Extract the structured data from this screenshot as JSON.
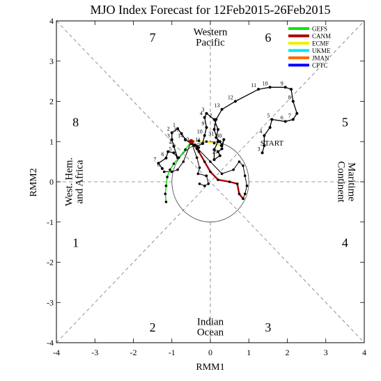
{
  "chart_data": {
    "type": "scatter",
    "title": "MJO Index Forecast for 12Feb2015-26Feb2015",
    "xlabel": "RMM1",
    "ylabel": "RMM2",
    "xlim": [
      -4,
      4
    ],
    "ylim": [
      -4,
      4
    ],
    "ticks": [
      "-4",
      "-3",
      "-2",
      "-1",
      "0",
      "1",
      "2",
      "3",
      "4"
    ],
    "grid": false,
    "legend_position": "top-right",
    "phases": [
      {
        "label": "1",
        "x": -3.5,
        "y": -1.5
      },
      {
        "label": "2",
        "x": -1.5,
        "y": -3.6
      },
      {
        "label": "3",
        "x": 1.5,
        "y": -3.6
      },
      {
        "label": "4",
        "x": 3.5,
        "y": -1.5
      },
      {
        "label": "5",
        "x": 3.5,
        "y": 1.5
      },
      {
        "label": "6",
        "x": 1.5,
        "y": 3.6
      },
      {
        "label": "7",
        "x": -1.5,
        "y": 3.6
      },
      {
        "label": "8",
        "x": -3.5,
        "y": 1.5
      }
    ],
    "regions": [
      {
        "name": "western-pacific",
        "lines": [
          "Western",
          "Pacific"
        ],
        "x": 0,
        "y": 3.6,
        "rotate": 0
      },
      {
        "name": "indian-ocean",
        "lines": [
          "Indian",
          "Ocean"
        ],
        "x": 0,
        "y": -3.6,
        "rotate": 0
      },
      {
        "name": "west-hem-africa",
        "lines": [
          "West. Hem.",
          "and Africa"
        ],
        "x": -3.55,
        "y": 0,
        "rotate": -90
      },
      {
        "name": "maritime-continent",
        "lines": [
          "Maritime",
          "Continent"
        ],
        "x": 3.55,
        "y": 0,
        "rotate": 90
      }
    ],
    "start_label": {
      "text": "START",
      "x": 1.3,
      "y": 0.9
    },
    "observed": {
      "name": "observed",
      "color": "#000000",
      "points": [
        {
          "x": -1.25,
          "y": 0.33,
          "label": "8"
        },
        {
          "x": -1.35,
          "y": 0.46,
          "label": "7"
        },
        {
          "x": -1.15,
          "y": 0.59,
          "label": "6"
        },
        {
          "x": -1.1,
          "y": 0.75,
          "label": ""
        },
        {
          "x": -0.95,
          "y": 0.72,
          "label": "5"
        },
        {
          "x": -0.85,
          "y": 0.6,
          "label": ""
        },
        {
          "x": -0.95,
          "y": 0.88,
          "label": "4"
        },
        {
          "x": -1.0,
          "y": 1.05,
          "label": "3"
        },
        {
          "x": -1.0,
          "y": 1.22,
          "label": "2"
        },
        {
          "x": -0.85,
          "y": 1.32,
          "label": "1"
        },
        {
          "x": -0.75,
          "y": 1.2,
          "label": "15"
        },
        {
          "x": -0.65,
          "y": 1.05,
          "label": "14"
        },
        {
          "x": -0.5,
          "y": 0.95,
          "label": "13"
        },
        {
          "x": -0.35,
          "y": 0.88,
          "label": "12"
        },
        {
          "x": -0.2,
          "y": 0.95,
          "label": "11"
        },
        {
          "x": -0.15,
          "y": 1.15,
          "label": "10"
        },
        {
          "x": -0.1,
          "y": 1.35,
          "label": "9"
        },
        {
          "x": -0.15,
          "y": 1.6,
          "label": "4"
        },
        {
          "x": -0.1,
          "y": 1.7,
          "label": "3"
        },
        {
          "x": 0.1,
          "y": 1.55,
          "label": "2"
        },
        {
          "x": 0.2,
          "y": 1.3,
          "label": "1"
        },
        {
          "x": 0.15,
          "y": 1.1,
          "label": "31"
        },
        {
          "x": 0.25,
          "y": 1.0,
          "label": ""
        },
        {
          "x": 0.3,
          "y": 0.9,
          "label": ""
        },
        {
          "x": 0.35,
          "y": 1.05,
          "label": "30"
        },
        {
          "x": 0.3,
          "y": 0.82,
          "label": ""
        },
        {
          "x": 0.2,
          "y": 0.75,
          "label": ""
        },
        {
          "x": 0.25,
          "y": 0.65,
          "label": "29"
        },
        {
          "x": 0.1,
          "y": 0.55,
          "label": ""
        },
        {
          "x": 0.1,
          "y": 0.8,
          "label": ""
        },
        {
          "x": 0.2,
          "y": 1.0,
          "label": ""
        },
        {
          "x": 0.1,
          "y": 1.3,
          "label": ""
        },
        {
          "x": 0.15,
          "y": 1.55,
          "label": ""
        },
        {
          "x": 0.3,
          "y": 1.8,
          "label": "13"
        },
        {
          "x": 0.65,
          "y": 2.0,
          "label": "12"
        },
        {
          "x": 1.25,
          "y": 2.3,
          "label": "11"
        },
        {
          "x": 1.55,
          "y": 2.35,
          "label": "10"
        },
        {
          "x": 1.95,
          "y": 2.35,
          "label": "9"
        },
        {
          "x": 2.1,
          "y": 2.3,
          "label": ""
        },
        {
          "x": 2.15,
          "y": 2.0,
          "label": "8"
        },
        {
          "x": 2.25,
          "y": 1.7,
          "label": ""
        },
        {
          "x": 2.15,
          "y": 1.55,
          "label": "7"
        },
        {
          "x": 1.95,
          "y": 1.5,
          "label": "6"
        },
        {
          "x": 1.6,
          "y": 1.55,
          "label": "5"
        },
        {
          "x": 1.55,
          "y": 1.35,
          "label": ""
        },
        {
          "x": 1.4,
          "y": 1.15,
          "label": "4"
        },
        {
          "x": 1.4,
          "y": 0.9,
          "label": ""
        },
        {
          "x": 1.35,
          "y": 0.72,
          "label": "3"
        }
      ]
    },
    "series": [
      {
        "name": "GEFS",
        "color": "#00ee00",
        "points": [
          {
            "x": -0.5,
            "y": 1.0
          },
          {
            "x": -0.65,
            "y": 0.8
          },
          {
            "x": -0.82,
            "y": 0.6
          },
          {
            "x": -0.95,
            "y": 0.45
          },
          {
            "x": -1.05,
            "y": 0.3
          },
          {
            "x": -1.12,
            "y": 0.12
          },
          {
            "x": -1.15,
            "y": -0.1
          },
          {
            "x": -1.17,
            "y": -0.3
          },
          {
            "x": -1.15,
            "y": -0.5
          }
        ]
      },
      {
        "name": "CANM",
        "color": "#aa0000",
        "points": [
          {
            "x": -0.5,
            "y": 1.0
          },
          {
            "x": -0.3,
            "y": 0.75
          },
          {
            "x": -0.15,
            "y": 0.5
          },
          {
            "x": 0.0,
            "y": 0.25
          },
          {
            "x": 0.2,
            "y": 0.05
          },
          {
            "x": 0.5,
            "y": 0.0
          },
          {
            "x": 0.7,
            "y": -0.05
          },
          {
            "x": 0.75,
            "y": -0.3
          },
          {
            "x": 0.85,
            "y": -0.42
          }
        ]
      },
      {
        "name": "ECMF",
        "color": "#f0f000",
        "points": [
          {
            "x": -0.5,
            "y": 1.0
          },
          {
            "x": -0.3,
            "y": 1.02
          },
          {
            "x": -0.1,
            "y": 1.0
          },
          {
            "x": 0.1,
            "y": 0.96
          },
          {
            "x": 0.28,
            "y": 0.9
          }
        ]
      },
      {
        "name": "UKME",
        "color": "#00e5ee",
        "points": [
          {
            "x": -0.5,
            "y": 1.0
          },
          {
            "x": -0.4,
            "y": 0.92
          },
          {
            "x": -0.3,
            "y": 0.85
          }
        ]
      },
      {
        "name": "JMAN",
        "color": "#ff6a00",
        "points": [
          {
            "x": -0.5,
            "y": 1.0
          },
          {
            "x": -0.42,
            "y": 0.9
          },
          {
            "x": -0.35,
            "y": 0.82
          }
        ]
      },
      {
        "name": "CPTC",
        "color": "#0000ff",
        "points": []
      }
    ],
    "ensemble_paths": [
      {
        "color": "#000000",
        "points": [
          {
            "x": -0.5,
            "y": 1.0
          },
          {
            "x": -0.7,
            "y": 0.5
          },
          {
            "x": -0.85,
            "y": 0.3
          },
          {
            "x": -1.0,
            "y": 0.25
          },
          {
            "x": -1.2,
            "y": 0.25
          }
        ]
      },
      {
        "color": "#000000",
        "points": [
          {
            "x": -0.5,
            "y": 1.0
          },
          {
            "x": -0.35,
            "y": 0.6
          },
          {
            "x": -0.28,
            "y": 0.35
          },
          {
            "x": -0.32,
            "y": 0.2
          },
          {
            "x": -0.1,
            "y": 0.15
          },
          {
            "x": -0.05,
            "y": -0.05
          },
          {
            "x": -0.15,
            "y": -0.1
          },
          {
            "x": -0.28,
            "y": -0.05
          }
        ]
      },
      {
        "color": "#000000",
        "points": [
          {
            "x": -0.5,
            "y": 1.0
          },
          {
            "x": 0.0,
            "y": 0.5
          },
          {
            "x": 0.3,
            "y": 0.2
          },
          {
            "x": 0.6,
            "y": 0.3
          },
          {
            "x": 0.75,
            "y": 0.5
          },
          {
            "x": 0.85,
            "y": 0.4
          },
          {
            "x": 0.9,
            "y": 0.15
          },
          {
            "x": 0.95,
            "y": -0.1
          },
          {
            "x": 0.9,
            "y": -0.3
          },
          {
            "x": 0.85,
            "y": -0.42
          }
        ]
      }
    ]
  }
}
